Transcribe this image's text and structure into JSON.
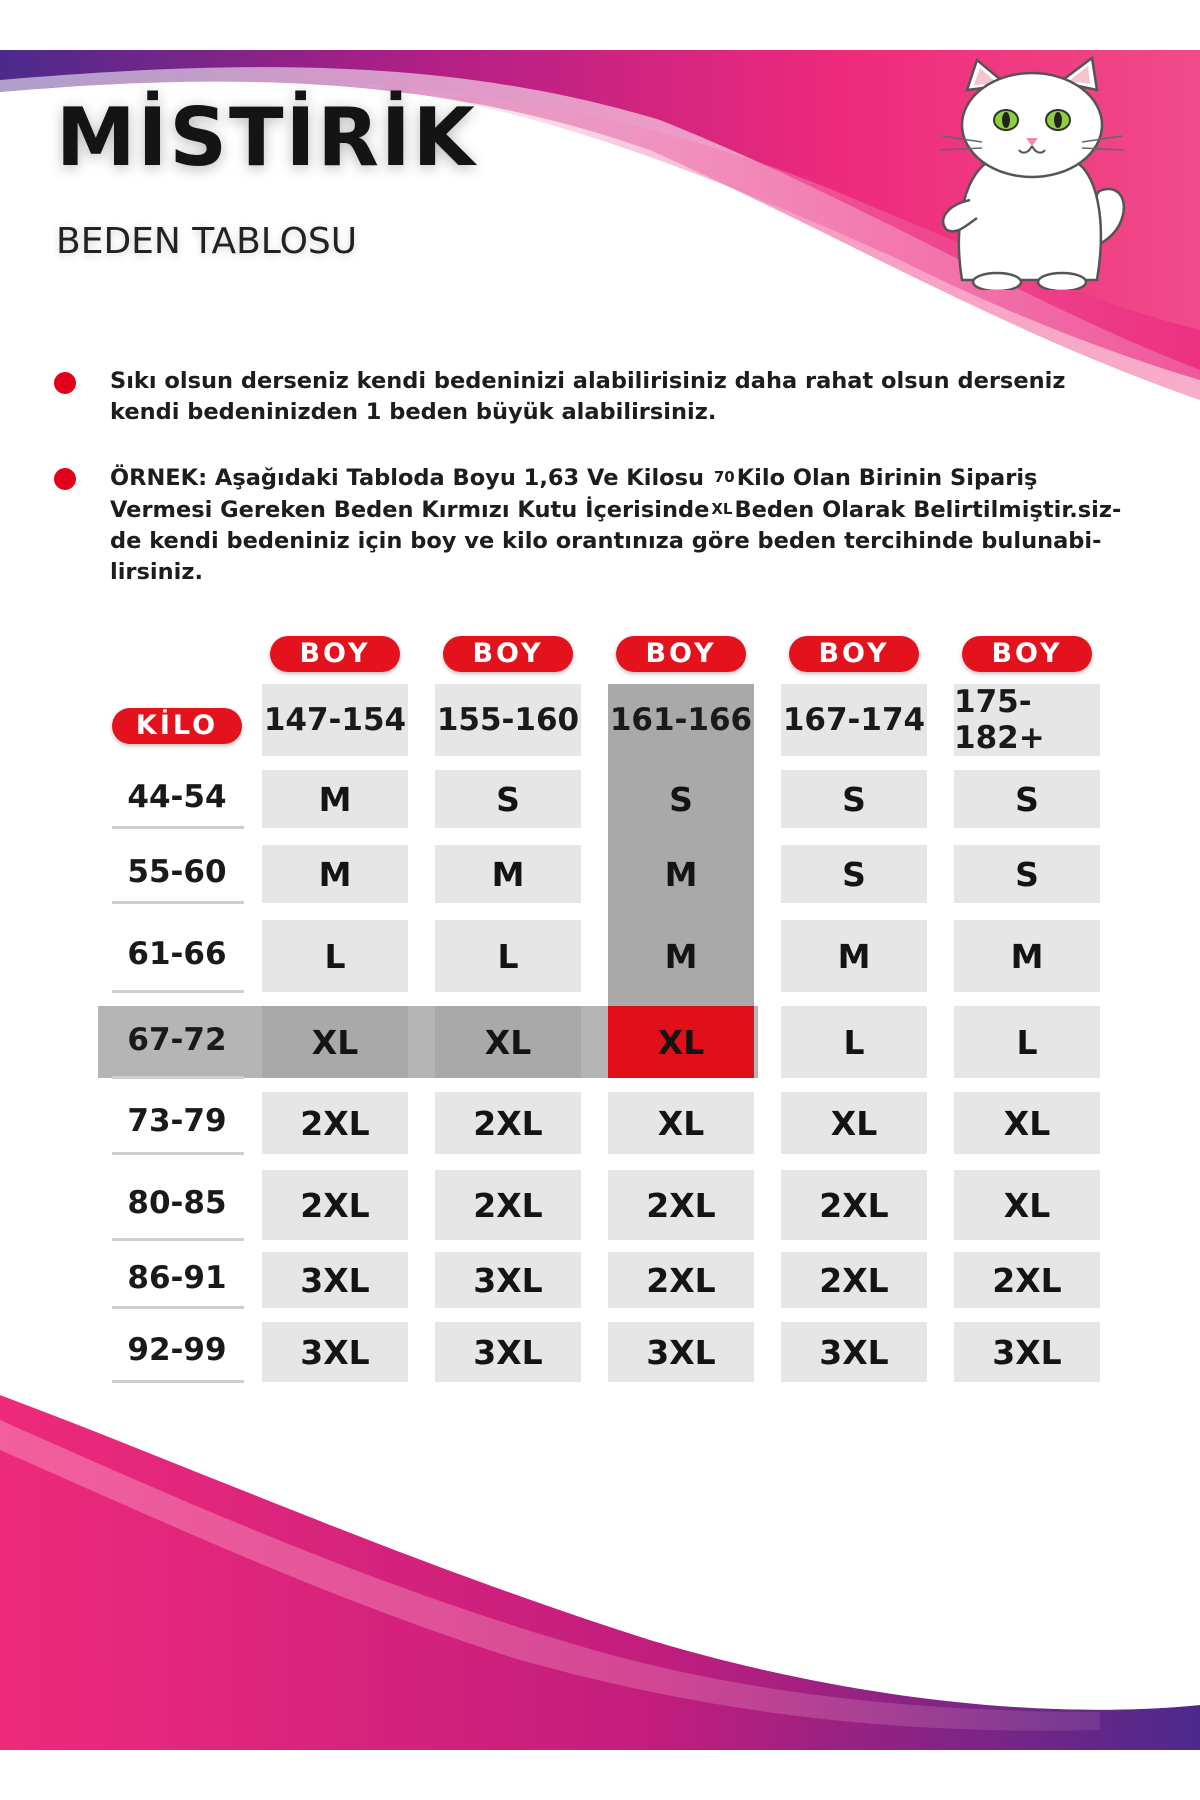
{
  "header": {
    "brand": "MİSTİRİK",
    "subtitle": "BEDEN TABLOSU"
  },
  "notes": {
    "note1": "Sıkı olsun derseniz kendi bedeninizi alabilirisiniz daha rahat olsun derseniz kendi bedeninizden 1 beden büyük alabilirsiniz.",
    "note2_part1": "ÖRNEK: Aşağıdaki Tabloda Boyu 1,63 Ve Kilosu",
    "note2_weight": "70",
    "note2_part2": "Kilo Olan Birinin Sipariş Vermesi Gereken Beden Kırmızı Kutu İçerisinde",
    "note2_size": "XL",
    "note2_part3": "Beden Olarak Belirtilmiştir.siz-de kendi bedeniniz için boy ve kilo orantınıza göre beden tercihinde bulunabi-lirsiniz."
  },
  "table": {
    "boy_label": "BOY",
    "kilo_label": "KİLO",
    "heights": [
      "147-154",
      "155-160",
      "161-166",
      "167-174",
      "175-182+"
    ],
    "weights": [
      "44-54",
      "55-60",
      "61-66",
      "67-72",
      "73-79",
      "80-85",
      "86-91",
      "92-99"
    ],
    "sizes": [
      [
        "M",
        "S",
        "S",
        "S",
        "S"
      ],
      [
        "M",
        "M",
        "M",
        "S",
        "S"
      ],
      [
        "L",
        "L",
        "M",
        "M",
        "M"
      ],
      [
        "XL",
        "XL",
        "XL",
        "L",
        "L"
      ],
      [
        "2XL",
        "2XL",
        "XL",
        "XL",
        "XL"
      ],
      [
        "2XL",
        "2XL",
        "2XL",
        "2XL",
        "XL"
      ],
      [
        "3XL",
        "3XL",
        "2XL",
        "2XL",
        "2XL"
      ],
      [
        "3XL",
        "3XL",
        "3XL",
        "3XL",
        "3XL"
      ]
    ]
  },
  "colors": {
    "accent_red": "#e3121d",
    "pink": "#e8207a",
    "purple": "#4b2a8c",
    "cell_gray": "#e6e6e6",
    "highlight_gray": "#a9a9a9"
  }
}
